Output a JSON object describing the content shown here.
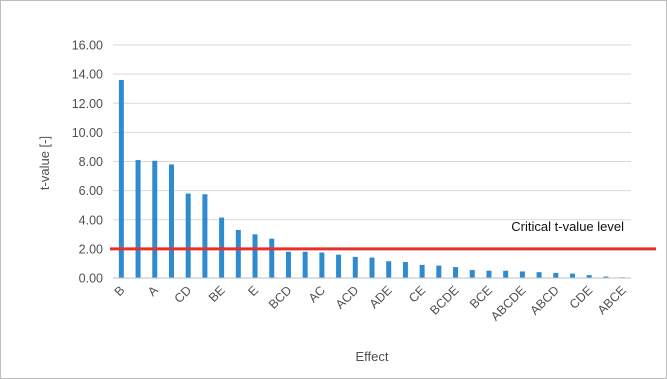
{
  "chart_data": {
    "type": "bar",
    "title": "",
    "xlabel": "Effect",
    "ylabel": "t-value [-]",
    "ylim": [
      0,
      16
    ],
    "yticks": [
      "0.00",
      "2.00",
      "4.00",
      "6.00",
      "8.00",
      "10.00",
      "12.00",
      "14.00",
      "16.00"
    ],
    "grid": true,
    "legend": "none",
    "bar_color": "#2e8bd0",
    "categories": [
      "B",
      "",
      "A",
      "",
      "CD",
      "",
      "BE",
      "",
      "E",
      "",
      "BCD",
      "",
      "AC",
      "",
      "ACD",
      "",
      "ADE",
      "",
      "CE",
      "",
      "BCDE",
      "",
      "BCE",
      "",
      "ABCDE",
      "",
      "ABCD",
      "",
      "CDE",
      "",
      "ABCE"
    ],
    "values": [
      13.6,
      8.1,
      8.05,
      7.8,
      5.8,
      5.75,
      4.15,
      3.3,
      3.0,
      2.7,
      1.8,
      1.8,
      1.75,
      1.6,
      1.45,
      1.4,
      1.15,
      1.1,
      0.9,
      0.85,
      0.75,
      0.55,
      0.5,
      0.5,
      0.45,
      0.4,
      0.35,
      0.3,
      0.2,
      0.1,
      0.05
    ],
    "reference_line": {
      "value": 2.0,
      "label": "Critical t-value level",
      "color": "#e8302a"
    }
  }
}
